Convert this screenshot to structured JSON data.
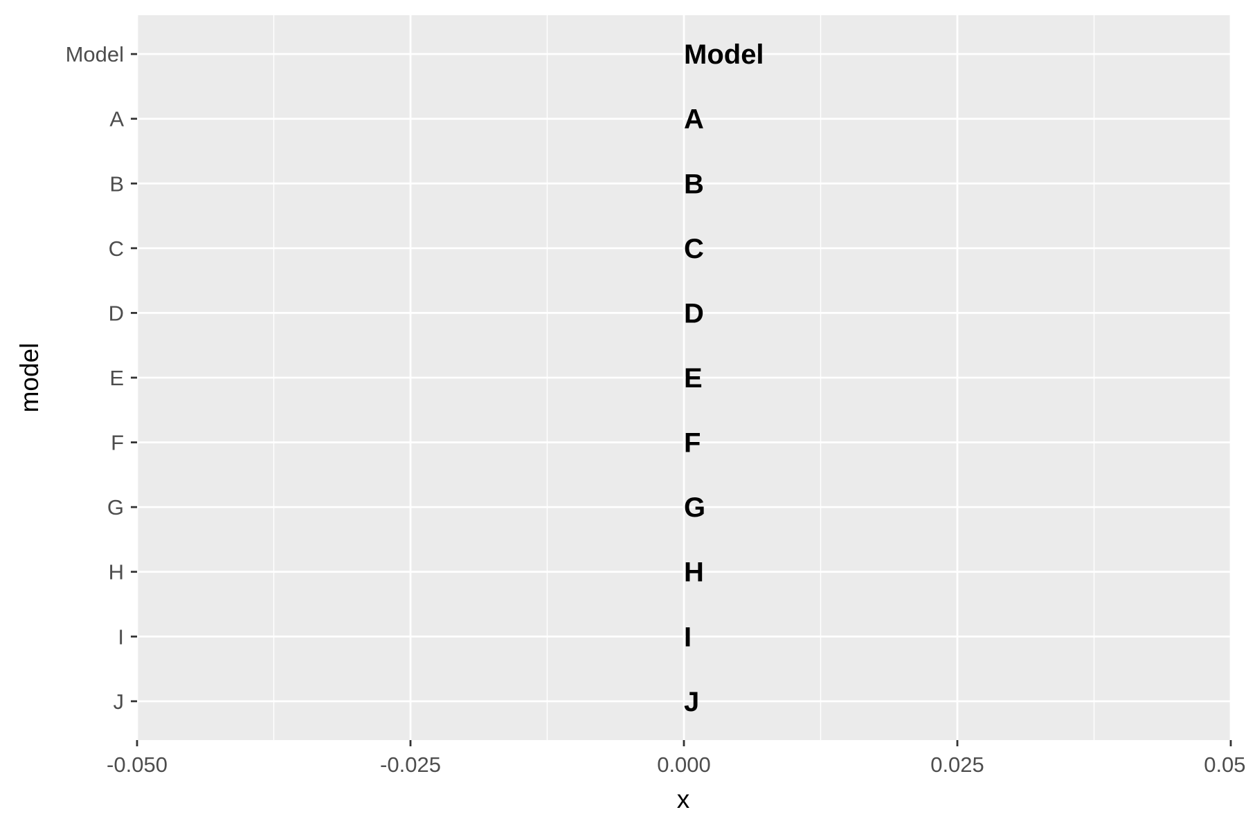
{
  "chart_data": {
    "type": "scatter",
    "title": "",
    "xlabel": "x",
    "ylabel": "model",
    "xlim": [
      -0.05,
      0.05
    ],
    "x_ticks": [
      "-0.050",
      "-0.025",
      "0.000",
      "0.025",
      "0.050"
    ],
    "x_tick_values": [
      -0.05,
      -0.025,
      0.0,
      0.025,
      0.05
    ],
    "y_categories": [
      "Model",
      "A",
      "B",
      "C",
      "D",
      "E",
      "F",
      "G",
      "H",
      "I",
      "J"
    ],
    "points": [
      {
        "x": 0,
        "y": "Model",
        "label": "Model"
      },
      {
        "x": 0,
        "y": "A",
        "label": "A"
      },
      {
        "x": 0,
        "y": "B",
        "label": "B"
      },
      {
        "x": 0,
        "y": "C",
        "label": "C"
      },
      {
        "x": 0,
        "y": "D",
        "label": "D"
      },
      {
        "x": 0,
        "y": "E",
        "label": "E"
      },
      {
        "x": 0,
        "y": "F",
        "label": "F"
      },
      {
        "x": 0,
        "y": "G",
        "label": "G"
      },
      {
        "x": 0,
        "y": "H",
        "label": "H"
      },
      {
        "x": 0,
        "y": "I",
        "label": "I"
      },
      {
        "x": 0,
        "y": "J",
        "label": "J"
      }
    ],
    "grid": true,
    "legend": "none",
    "colors": {
      "panel": "#ebebeb",
      "grid": "#ffffff",
      "tick": "#333333",
      "tick_label": "#4d4d4d",
      "label": "#000000"
    }
  }
}
